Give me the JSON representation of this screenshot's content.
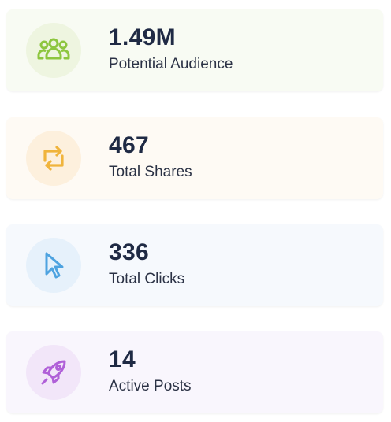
{
  "stats": [
    {
      "value": "1.49M",
      "label": "Potential Audience",
      "icon": "users-icon",
      "accent": "#8dc63f",
      "card_bg": "#f8fbf3",
      "circle_bg": "#eef5e0"
    },
    {
      "value": "467",
      "label": "Total Shares",
      "icon": "repeat-icon",
      "accent": "#f0b43c",
      "card_bg": "#fefaf4",
      "circle_bg": "#fdf0dd"
    },
    {
      "value": "336",
      "label": "Total Clicks",
      "icon": "cursor-icon",
      "accent": "#4ea3e0",
      "card_bg": "#f6f9fd",
      "circle_bg": "#e6f1fb"
    },
    {
      "value": "14",
      "label": "Active Posts",
      "icon": "rocket-icon",
      "accent": "#b060d8",
      "card_bg": "#f9f6fd",
      "circle_bg": "#f2e6f9"
    }
  ]
}
